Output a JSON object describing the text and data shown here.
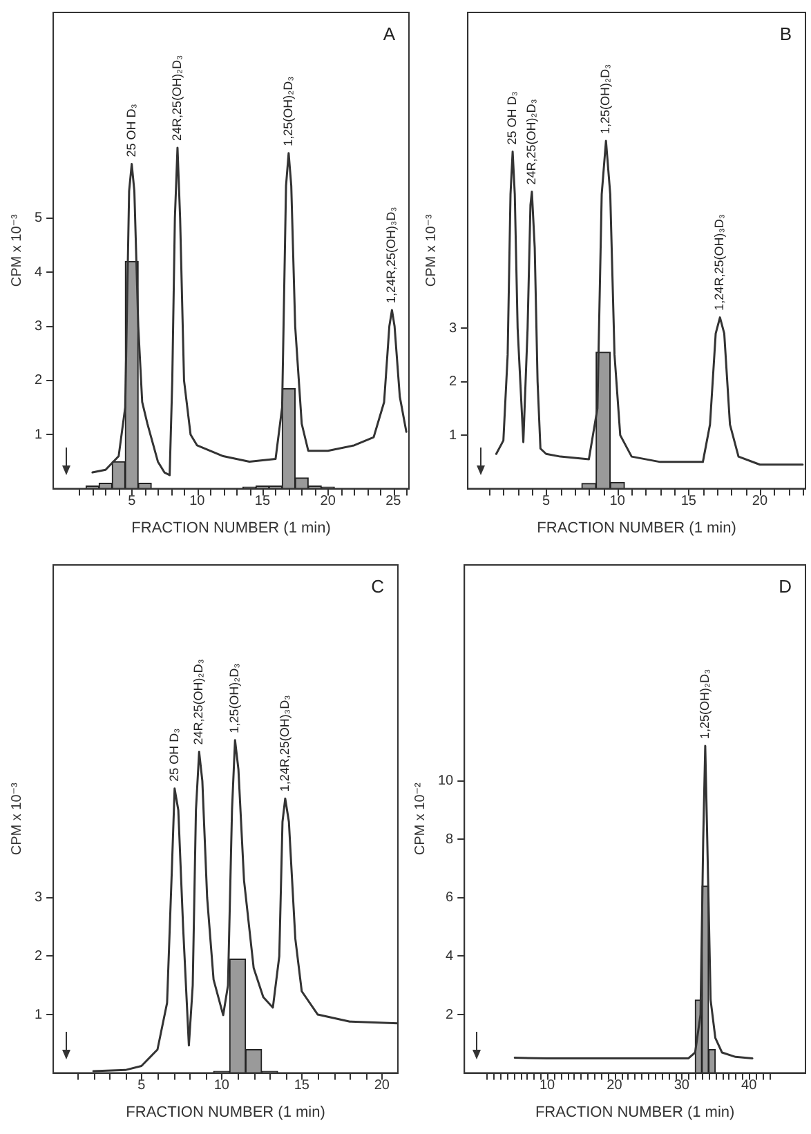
{
  "chart_data": [
    {
      "type": "bar",
      "title": "A",
      "xlabel": "FRACTION NUMBER (1 min)",
      "ylabel": "CPM x 10⁻³",
      "xlim": [
        -1,
        26.2
      ],
      "ylim": [
        0,
        8.8
      ],
      "yticks": [
        1,
        2,
        3,
        4,
        5
      ],
      "xticks": [
        {
          "value": 1,
          "label": null
        },
        {
          "value": 2,
          "label": null
        },
        {
          "value": 3,
          "label": null
        },
        {
          "value": 4,
          "label": null
        },
        5,
        {
          "value": 6,
          "label": null
        },
        {
          "value": 7,
          "label": null
        },
        {
          "value": 8,
          "label": null
        },
        {
          "value": 9,
          "label": null
        },
        10,
        {
          "value": 11,
          "label": null
        },
        {
          "value": 12,
          "label": null
        },
        {
          "value": 13,
          "label": null
        },
        {
          "value": 14,
          "label": null
        },
        15,
        {
          "value": 16,
          "label": null
        },
        {
          "value": 17,
          "label": null
        },
        {
          "value": 18,
          "label": null
        },
        {
          "value": 19,
          "label": null
        },
        20,
        {
          "value": 21,
          "label": null
        },
        {
          "value": 22,
          "label": null
        },
        {
          "value": 23,
          "label": null
        },
        {
          "value": 24,
          "label": null
        },
        25,
        {
          "value": 26,
          "label": null
        }
      ],
      "series": [
        {
          "type": "line",
          "color": "#333333",
          "x": [
            2,
            3,
            4,
            4.5,
            4.8,
            5,
            5.2,
            5.5,
            5.8,
            6.2,
            7,
            7.5,
            7.9,
            8.1,
            8.3,
            8.5,
            8.7,
            9,
            9.5,
            10,
            12,
            14,
            16,
            16.5,
            16.8,
            17,
            17.2,
            17.5,
            18,
            18.5,
            20,
            22,
            23.5,
            24.3,
            24.7,
            24.9,
            25.1,
            25.5,
            26
          ],
          "values": [
            0.3,
            0.35,
            0.6,
            1.5,
            5.5,
            6,
            5.5,
            3,
            1.6,
            1.2,
            0.5,
            0.3,
            0.25,
            2,
            5,
            6.3,
            5,
            2,
            1,
            0.8,
            0.6,
            0.5,
            0.55,
            1.5,
            5.6,
            6.2,
            5.6,
            3,
            1.2,
            0.7,
            0.7,
            0.8,
            0.95,
            1.6,
            3,
            3.3,
            3,
            1.7,
            1.05
          ]
        },
        {
          "color": "#9a9a9a",
          "x": [
            2,
            3,
            4,
            5,
            6,
            14,
            15,
            16,
            17,
            18,
            19,
            20
          ],
          "values": [
            0.05,
            0.1,
            0.5,
            4.2,
            0.1,
            0.03,
            0.05,
            0.05,
            1.85,
            0.2,
            0.05,
            0.03
          ]
        }
      ],
      "annotations": [
        {
          "text": "25 OH D₃",
          "x": 5,
          "y": 6
        },
        {
          "text": "24R,25(OH)₂D₃",
          "x": 8.5,
          "y": 6.3
        },
        {
          "text": "1,25(OH)₂D₃",
          "x": 17,
          "y": 6.2
        },
        {
          "text": "1,24R,25(OH)₃D₃",
          "x": 24.9,
          "y": 3.3
        }
      ]
    },
    {
      "type": "bar",
      "title": "B",
      "xlabel": "FRACTION NUMBER (1 min)",
      "ylabel": "CPM x 10⁻³",
      "xlim": [
        -0.5,
        23.2
      ],
      "ylim": [
        0,
        8.9
      ],
      "yticks": [
        1,
        2,
        3
      ],
      "xticks": [
        {
          "value": 1,
          "label": null
        },
        {
          "value": 2,
          "label": null
        },
        {
          "value": 3,
          "label": null
        },
        {
          "value": 4,
          "label": null
        },
        5,
        {
          "value": 6,
          "label": null
        },
        {
          "value": 7,
          "label": null
        },
        {
          "value": 8,
          "label": null
        },
        {
          "value": 9,
          "label": null
        },
        10,
        {
          "value": 11,
          "label": null
        },
        {
          "value": 12,
          "label": null
        },
        {
          "value": 13,
          "label": null
        },
        {
          "value": 14,
          "label": null
        },
        15,
        {
          "value": 16,
          "label": null
        },
        {
          "value": 17,
          "label": null
        },
        {
          "value": 18,
          "label": null
        },
        {
          "value": 19,
          "label": null
        },
        20,
        {
          "value": 21,
          "label": null
        },
        {
          "value": 22,
          "label": null
        },
        {
          "value": 23,
          "label": null
        }
      ],
      "series": [
        {
          "type": "line",
          "color": "#333333",
          "x": [
            1.5,
            2,
            2.3,
            2.5,
            2.65,
            2.8,
            3,
            3.4,
            3.7,
            3.9,
            4,
            4.2,
            4.4,
            4.6,
            5,
            6,
            8,
            8.6,
            8.9,
            9.2,
            9.5,
            9.8,
            10.2,
            11,
            13,
            16,
            16.5,
            16.9,
            17.2,
            17.5,
            17.9,
            18.5,
            20,
            23
          ],
          "values": [
            0.65,
            0.9,
            2.5,
            5.5,
            6.3,
            5.5,
            3,
            0.87,
            3,
            5.3,
            5.55,
            4.5,
            2,
            0.75,
            0.65,
            0.6,
            0.55,
            1.5,
            5.5,
            6.5,
            5.5,
            2.5,
            1,
            0.6,
            0.5,
            0.5,
            1.2,
            2.9,
            3.2,
            2.9,
            1.2,
            0.6,
            0.45,
            0.45
          ]
        },
        {
          "color": "#9a9a9a",
          "x": [
            8,
            9,
            10
          ],
          "values": [
            0.1,
            2.55,
            0.12
          ]
        }
      ],
      "annotations": [
        {
          "text": "25 OH D₃",
          "x": 2.65,
          "y": 6.3
        },
        {
          "text": "24R,25(OH)₂D₃",
          "x": 4,
          "y": 5.55
        },
        {
          "text": "1,25(OH)₂D₃",
          "x": 9.2,
          "y": 6.5
        },
        {
          "text": "1,24R,25(OH)₃D₃",
          "x": 17.2,
          "y": 3.2
        }
      ]
    },
    {
      "type": "bar",
      "title": "C",
      "xlabel": "FRACTION NUMBER (1 min)",
      "ylabel": "CPM x 10⁻³",
      "xlim": [
        -0.5,
        21
      ],
      "ylim": [
        0,
        8.7
      ],
      "yticks": [
        1,
        2,
        3
      ],
      "xticks": [
        {
          "value": 1,
          "label": null
        },
        {
          "value": 2,
          "label": null
        },
        {
          "value": 3,
          "label": null
        },
        {
          "value": 4,
          "label": null
        },
        5,
        {
          "value": 6,
          "label": null
        },
        {
          "value": 7,
          "label": null
        },
        {
          "value": 8,
          "label": null
        },
        {
          "value": 9,
          "label": null
        },
        10,
        {
          "value": 11,
          "label": null
        },
        {
          "value": 12,
          "label": null
        },
        {
          "value": 13,
          "label": null
        },
        {
          "value": 14,
          "label": null
        },
        15,
        {
          "value": 16,
          "label": null
        },
        {
          "value": 17,
          "label": null
        },
        {
          "value": 18,
          "label": null
        },
        {
          "value": 19,
          "label": null
        },
        20
      ],
      "series": [
        {
          "type": "line",
          "color": "#333333",
          "x": [
            2,
            4,
            5,
            6,
            6.6,
            6.9,
            7.07,
            7.3,
            7.6,
            7.96,
            8.2,
            8.4,
            8.6,
            8.8,
            9.1,
            9.5,
            10.1,
            10.4,
            10.65,
            10.84,
            11.05,
            11.4,
            12,
            12.6,
            13.2,
            13.6,
            13.8,
            13.97,
            14.2,
            14.6,
            15,
            16,
            18,
            21
          ],
          "values": [
            0.03,
            0.05,
            0.12,
            0.4,
            1.2,
            3.5,
            4.87,
            4.5,
            2.5,
            0.47,
            1.5,
            4.5,
            5.5,
            5,
            3,
            1.6,
            0.99,
            1.5,
            4.5,
            5.7,
            5.2,
            3.3,
            1.8,
            1.3,
            1.12,
            2,
            4.3,
            4.7,
            4.3,
            2.3,
            1.4,
            1,
            0.88,
            0.85
          ]
        },
        {
          "color": "#9a9a9a",
          "x": [
            10,
            11,
            12,
            13
          ],
          "values": [
            0.03,
            1.95,
            0.4,
            0.03
          ]
        }
      ],
      "annotations": [
        {
          "text": "25 OH D₃",
          "x": 7.07,
          "y": 4.87
        },
        {
          "text": "24R,25(OH)₂D₃",
          "x": 8.6,
          "y": 5.5
        },
        {
          "text": "1,25(OH)₂D₃",
          "x": 10.84,
          "y": 5.7
        },
        {
          "text": "1,24R,25(OH)₃D₃",
          "x": 13.97,
          "y": 4.7
        }
      ]
    },
    {
      "type": "bar",
      "title": "D",
      "xlabel": "FRACTION NUMBER (1 min)",
      "ylabel": "CPM x 10⁻²",
      "xlim": [
        -2.3,
        48.4
      ],
      "ylim": [
        0,
        17.4
      ],
      "yticks": [
        2,
        4,
        6,
        8,
        10
      ],
      "xticks": [
        {
          "value": 1,
          "label": null
        },
        {
          "value": 2,
          "label": null
        },
        {
          "value": 3,
          "label": null
        },
        {
          "value": 4,
          "label": null
        },
        {
          "value": 5,
          "label": null
        },
        {
          "value": 6,
          "label": null
        },
        {
          "value": 7,
          "label": null
        },
        {
          "value": 8,
          "label": null
        },
        {
          "value": 9,
          "label": null
        },
        10,
        {
          "value": 11,
          "label": null
        },
        {
          "value": 12,
          "label": null
        },
        {
          "value": 13,
          "label": null
        },
        {
          "value": 14,
          "label": null
        },
        {
          "value": 15,
          "label": null
        },
        {
          "value": 16,
          "label": null
        },
        {
          "value": 17,
          "label": null
        },
        {
          "value": 18,
          "label": null
        },
        {
          "value": 19,
          "label": null
        },
        20,
        {
          "value": 21,
          "label": null
        },
        {
          "value": 22,
          "label": null
        },
        {
          "value": 23,
          "label": null
        },
        {
          "value": 24,
          "label": null
        },
        {
          "value": 25,
          "label": null
        },
        {
          "value": 26,
          "label": null
        },
        {
          "value": 27,
          "label": null
        },
        {
          "value": 28,
          "label": null
        },
        {
          "value": 29,
          "label": null
        },
        30,
        {
          "value": 31,
          "label": null
        },
        {
          "value": 32,
          "label": null
        },
        {
          "value": 33,
          "label": null
        },
        {
          "value": 34,
          "label": null
        },
        {
          "value": 35,
          "label": null
        },
        {
          "value": 36,
          "label": null
        },
        {
          "value": 37,
          "label": null
        },
        {
          "value": 38,
          "label": null
        },
        {
          "value": 39,
          "label": null
        },
        40,
        {
          "value": 41,
          "label": null
        },
        {
          "value": 42,
          "label": null
        },
        {
          "value": 43,
          "label": null
        }
      ],
      "series": [
        {
          "type": "line",
          "color": "#333333",
          "x": [
            5.2,
            10,
            20,
            31,
            32,
            32.8,
            33.2,
            33.5,
            33.8,
            34.3,
            35,
            36,
            38,
            40.5
          ],
          "values": [
            0.52,
            0.5,
            0.5,
            0.5,
            0.7,
            2,
            8,
            11.2,
            8,
            2.5,
            1.2,
            0.7,
            0.55,
            0.5
          ]
        },
        {
          "color": "#9a9a9a",
          "x": [
            32.5,
            33.5,
            34.5
          ],
          "values": [
            2.5,
            6.4,
            0.8
          ]
        }
      ],
      "annotations": [
        {
          "text": "1,25(OH)₂D₃",
          "x": 33.5,
          "y": 11.2
        }
      ]
    }
  ]
}
